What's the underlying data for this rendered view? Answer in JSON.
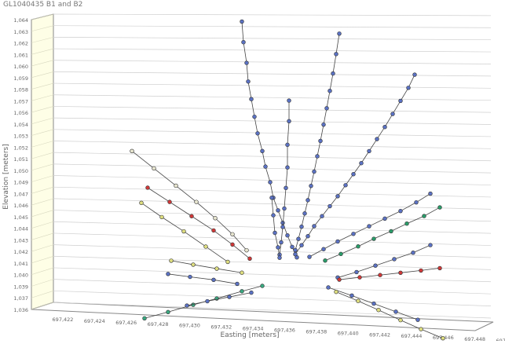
{
  "chart_title": "GL1040435 B1 and B2",
  "chart_data": {
    "type": "scatter",
    "title": "GL1040435 B1 and B2",
    "xlabel": "Easting [meters]",
    "ylabel": "Elevation [meters]",
    "projection": "3d-perspective",
    "x_ticks": [
      "697,422",
      "697,424",
      "697,426",
      "697,428",
      "697,430",
      "697,432",
      "697,434",
      "697,436",
      "697,438",
      "697,440",
      "697,442",
      "697,444",
      "697,446",
      "697,448",
      "697,450"
    ],
    "y_ticks": [
      "1,036",
      "1,037",
      "1,039",
      "1,040",
      "1,041",
      "1,042",
      "1,043",
      "1,044",
      "1,045",
      "1,046",
      "1,047",
      "1,049",
      "1,050",
      "1,051",
      "1,052",
      "1,053",
      "1,054",
      "1,056",
      "1,057",
      "1,058",
      "1,059",
      "1,060",
      "1,061",
      "1,062",
      "1,063",
      "1,064"
    ],
    "series": [
      {
        "color": "#5b72c4",
        "points": [
          [
            697434.0,
            1064.0
          ],
          [
            697434.1,
            1062.0
          ],
          [
            697434.3,
            1060.0
          ],
          [
            697434.4,
            1058.2
          ],
          [
            697434.6,
            1056.5
          ],
          [
            697434.8,
            1054.8
          ],
          [
            697435.0,
            1053.2
          ],
          [
            697435.3,
            1051.5
          ],
          [
            697435.5,
            1050.0
          ],
          [
            697435.8,
            1048.5
          ],
          [
            697436.0,
            1047.0
          ],
          [
            697436.3,
            1045.8
          ],
          [
            697436.6,
            1044.6
          ],
          [
            697436.9,
            1043.4
          ],
          [
            697437.2,
            1042.3
          ],
          [
            697437.5,
            1041.3
          ]
        ]
      },
      {
        "color": "#5b72c4",
        "points": [
          [
            697440.2,
            1063.2
          ],
          [
            697440.0,
            1061.2
          ],
          [
            697439.8,
            1059.3
          ],
          [
            697439.6,
            1057.6
          ],
          [
            697439.4,
            1055.9
          ],
          [
            697439.2,
            1054.3
          ],
          [
            697439.0,
            1052.7
          ],
          [
            697438.8,
            1051.2
          ],
          [
            697438.6,
            1049.7
          ],
          [
            697438.4,
            1048.3
          ],
          [
            697438.2,
            1046.9
          ],
          [
            697438.0,
            1045.6
          ],
          [
            697437.8,
            1044.3
          ],
          [
            697437.6,
            1043.1
          ],
          [
            697437.4,
            1042.0
          ]
        ]
      },
      {
        "color": "#5b72c4",
        "points": [
          [
            697445.0,
            1059.5
          ],
          [
            697444.6,
            1058.2
          ],
          [
            697444.1,
            1056.9
          ],
          [
            697443.6,
            1055.6
          ],
          [
            697443.1,
            1054.3
          ],
          [
            697442.6,
            1053.1
          ],
          [
            697442.1,
            1051.9
          ],
          [
            697441.6,
            1050.7
          ],
          [
            697441.1,
            1049.6
          ],
          [
            697440.6,
            1048.5
          ],
          [
            697440.1,
            1047.4
          ],
          [
            697439.6,
            1046.4
          ],
          [
            697439.1,
            1045.4
          ],
          [
            697438.6,
            1044.4
          ],
          [
            697438.2,
            1043.4
          ],
          [
            697437.8,
            1042.5
          ],
          [
            697437.4,
            1041.6
          ]
        ]
      },
      {
        "color": "#5b72c4",
        "points": [
          [
            697437.0,
            1056.5
          ],
          [
            697437.0,
            1054.5
          ],
          [
            697436.9,
            1052.2
          ],
          [
            697436.9,
            1050.0
          ],
          [
            697436.8,
            1048.0
          ],
          [
            697436.7,
            1046.0
          ],
          [
            697436.6,
            1044.2
          ],
          [
            697436.5,
            1042.7
          ],
          [
            697436.4,
            1041.5
          ]
        ]
      },
      {
        "color": "#5b72c4",
        "points": [
          [
            697435.9,
            1047.0
          ],
          [
            697436.0,
            1045.3
          ],
          [
            697436.1,
            1043.6
          ],
          [
            697436.3,
            1042.2
          ],
          [
            697436.4,
            1041.2
          ]
        ]
      },
      {
        "color": "#5b72c4",
        "points": [
          [
            697446.0,
            1048.0
          ],
          [
            697445.1,
            1047.1
          ],
          [
            697444.1,
            1046.2
          ],
          [
            697443.1,
            1045.4
          ],
          [
            697442.1,
            1044.6
          ],
          [
            697441.1,
            1043.8
          ],
          [
            697440.1,
            1043.0
          ],
          [
            697439.2,
            1042.2
          ],
          [
            697438.3,
            1041.4
          ]
        ]
      },
      {
        "color": "#2a9d6a",
        "points": [
          [
            697446.6,
            1046.7
          ],
          [
            697445.6,
            1045.8
          ],
          [
            697444.5,
            1045.0
          ],
          [
            697443.5,
            1044.2
          ],
          [
            697442.4,
            1043.4
          ],
          [
            697441.4,
            1042.6
          ],
          [
            697440.3,
            1041.8
          ],
          [
            697439.3,
            1041.1
          ]
        ]
      },
      {
        "color": "#5b72c4",
        "points": [
          [
            697446.0,
            1043.0
          ],
          [
            697444.9,
            1042.2
          ],
          [
            697443.7,
            1041.5
          ],
          [
            697442.5,
            1040.8
          ],
          [
            697441.3,
            1040.1
          ],
          [
            697440.1,
            1039.5
          ]
        ]
      },
      {
        "color": "#d03838",
        "points": [
          [
            697446.6,
            1040.8
          ],
          [
            697445.4,
            1040.5
          ],
          [
            697444.1,
            1040.2
          ],
          [
            697442.8,
            1039.9
          ],
          [
            697441.5,
            1039.6
          ],
          [
            697440.2,
            1039.3
          ]
        ]
      },
      {
        "color": "#e8e6d0",
        "points": [
          [
            697427.0,
            1051.0
          ],
          [
            697428.4,
            1049.4
          ],
          [
            697429.8,
            1047.8
          ],
          [
            697431.1,
            1046.3
          ],
          [
            697432.3,
            1044.8
          ],
          [
            697433.4,
            1043.3
          ],
          [
            697434.3,
            1041.8
          ]
        ]
      },
      {
        "color": "#d03838",
        "points": [
          [
            697428.0,
            1047.5
          ],
          [
            697429.4,
            1046.2
          ],
          [
            697430.8,
            1044.9
          ],
          [
            697432.2,
            1043.6
          ],
          [
            697433.4,
            1042.3
          ],
          [
            697434.5,
            1041.0
          ]
        ]
      },
      {
        "color": "#dede80",
        "points": [
          [
            697427.6,
            1046.0
          ],
          [
            697428.9,
            1044.7
          ],
          [
            697430.3,
            1043.4
          ],
          [
            697431.7,
            1042.0
          ],
          [
            697433.1,
            1040.6
          ]
        ]
      },
      {
        "color": "#dede80",
        "points": [
          [
            697429.5,
            1040.5
          ],
          [
            697430.9,
            1040.2
          ],
          [
            697432.4,
            1039.9
          ],
          [
            697434.0,
            1039.6
          ]
        ]
      },
      {
        "color": "#5b72c4",
        "points": [
          [
            697429.3,
            1039.2
          ],
          [
            697430.7,
            1039.0
          ],
          [
            697432.2,
            1038.8
          ],
          [
            697433.7,
            1038.5
          ]
        ]
      },
      {
        "color": "#3aa880",
        "points": [
          [
            697427.8,
            1034.8
          ],
          [
            697429.3,
            1035.5
          ],
          [
            697430.9,
            1036.3
          ],
          [
            697432.4,
            1037.0
          ],
          [
            697434.0,
            1037.8
          ],
          [
            697435.3,
            1038.4
          ]
        ]
      },
      {
        "color": "#5b72c4",
        "points": [
          [
            697430.5,
            1036.2
          ],
          [
            697431.8,
            1036.7
          ],
          [
            697433.2,
            1037.2
          ],
          [
            697434.6,
            1037.7
          ]
        ]
      },
      {
        "color": "#5b72c4",
        "points": [
          [
            697439.5,
            1038.5
          ],
          [
            697441.0,
            1037.8
          ],
          [
            697442.4,
            1037.1
          ],
          [
            697443.8,
            1036.4
          ],
          [
            697445.2,
            1035.7
          ]
        ]
      },
      {
        "color": "#dede80",
        "points": [
          [
            697440.0,
            1038.1
          ],
          [
            697441.4,
            1037.3
          ],
          [
            697442.7,
            1036.5
          ],
          [
            697444.1,
            1035.6
          ],
          [
            697445.4,
            1034.8
          ],
          [
            697446.8,
            1034.0
          ]
        ]
      }
    ]
  }
}
